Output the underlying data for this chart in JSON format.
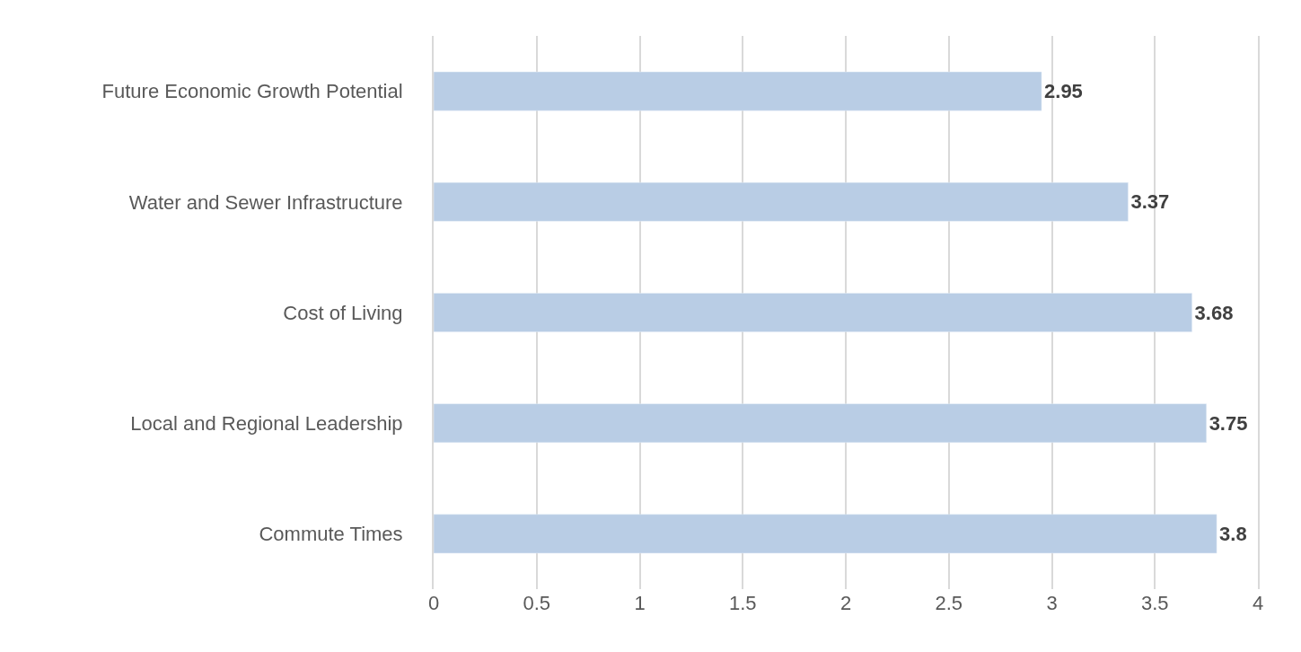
{
  "chart_data": {
    "type": "bar",
    "orientation": "horizontal",
    "categories": [
      "Future Economic Growth Potential",
      "Water and Sewer Infrastructure",
      "Cost of Living",
      "Local and Regional Leadership",
      "Commute Times"
    ],
    "values": [
      2.95,
      3.37,
      3.68,
      3.75,
      3.8
    ],
    "color": "#b9cde5",
    "xlim": [
      0,
      4
    ],
    "xticks": [
      0,
      0.5,
      1,
      1.5,
      2,
      2.5,
      3,
      3.5,
      4
    ],
    "grid": "x",
    "data_labels": true
  }
}
